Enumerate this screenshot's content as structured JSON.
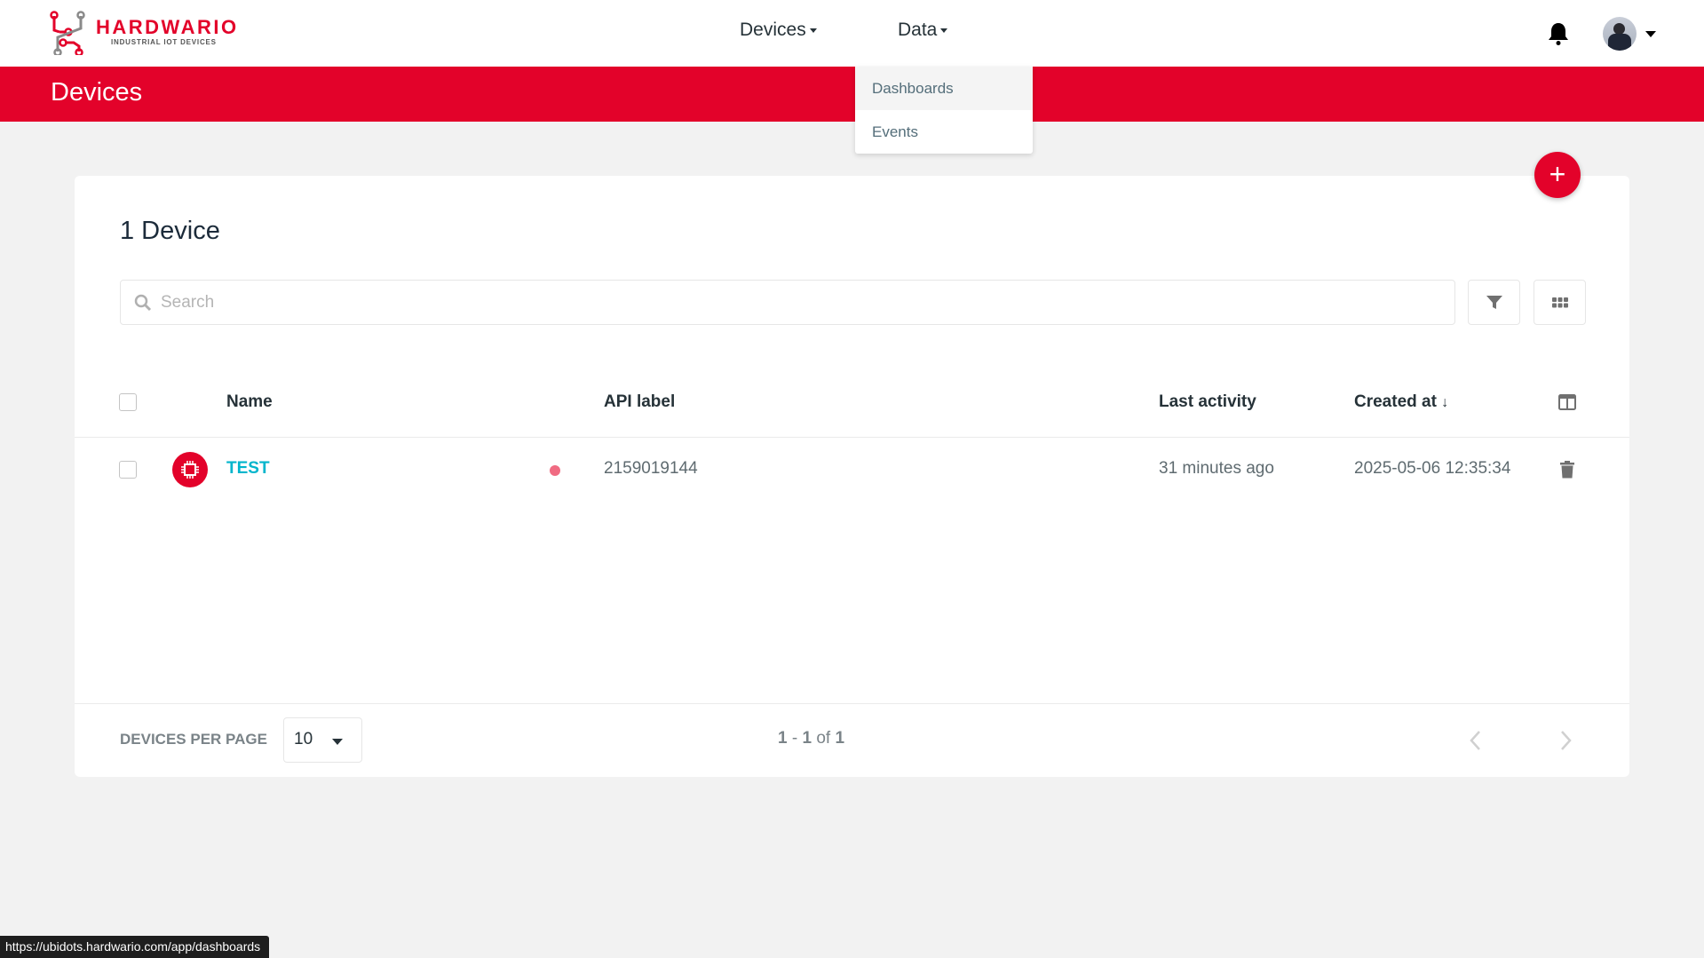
{
  "header": {
    "brand": "HARDWARIO",
    "brand_tagline": "INDUSTRIAL IOT DEVICES",
    "nav": [
      {
        "label": "Devices"
      },
      {
        "label": "Data"
      }
    ],
    "dropdown": [
      {
        "label": "Dashboards"
      },
      {
        "label": "Events"
      }
    ]
  },
  "page_title": "Devices",
  "card": {
    "count_title": "1 Device",
    "search_placeholder": "Search",
    "columns": {
      "name": "Name",
      "api_label": "API label",
      "last_activity": "Last activity",
      "created_at": "Created at"
    },
    "rows": [
      {
        "name": "TEST",
        "status_color": "#f06b82",
        "api_label": "2159019144",
        "last_activity": "31 minutes ago",
        "created_at": "2025-05-06 12:35:34"
      }
    ],
    "footer": {
      "per_page_label": "DEVICES PER PAGE",
      "per_page_value": "10",
      "range_start": "1",
      "range_sep": " - ",
      "range_end": "1",
      "of": " of ",
      "total": "1"
    }
  },
  "status_url": "https://ubidots.hardwario.com/app/dashboards",
  "colors": {
    "brand": "#e3022a",
    "link": "#00b5cc"
  }
}
